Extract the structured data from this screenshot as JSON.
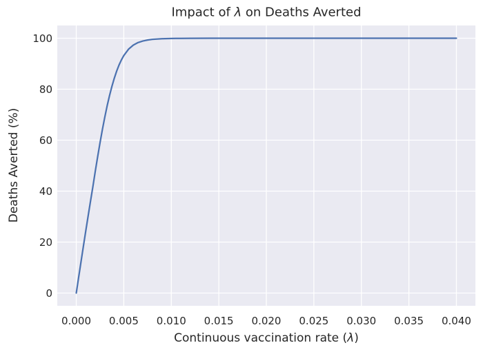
{
  "figure": {
    "title": {
      "pre": "Impact of ",
      "sym": "λ",
      "post": " on Deaths Averted"
    },
    "xlabel": {
      "pre": "Continuous vaccination rate (",
      "sym": "λ",
      "post": ")"
    },
    "ylabel": "Deaths Averted (%)",
    "colors": {
      "figure_bg": "#FFFFFF",
      "axes_bg": "#EAEAF2",
      "grid": "#FFFFFF",
      "line": "#4C72B0",
      "text": "#262626"
    }
  },
  "chart_data": {
    "type": "line",
    "title": "Impact of λ on Deaths Averted",
    "xlabel": "Continuous vaccination rate (λ)",
    "ylabel": "Deaths Averted (%)",
    "xlim": [
      -0.002,
      0.042
    ],
    "ylim": [
      -5,
      105
    ],
    "xticks": [
      0.0,
      0.005,
      0.01,
      0.015,
      0.02,
      0.025,
      0.03,
      0.035,
      0.04
    ],
    "xtick_labels": [
      "0.000",
      "0.005",
      "0.010",
      "0.015",
      "0.020",
      "0.025",
      "0.030",
      "0.035",
      "0.040"
    ],
    "yticks": [
      0,
      20,
      40,
      60,
      80,
      100
    ],
    "ytick_labels": [
      "0",
      "20",
      "40",
      "60",
      "80",
      "100"
    ],
    "grid": true,
    "legend": false,
    "series": [
      {
        "name": "deaths-averted-curve",
        "color": "#4C72B0",
        "x": [
          0.0,
          0.00025,
          0.0005,
          0.00075,
          0.001,
          0.00125,
          0.0015,
          0.00175,
          0.002,
          0.00225,
          0.0025,
          0.00275,
          0.003,
          0.00325,
          0.0035,
          0.00375,
          0.004,
          0.00425,
          0.0045,
          0.00475,
          0.005,
          0.0055,
          0.006,
          0.0065,
          0.007,
          0.0075,
          0.008,
          0.009,
          0.01,
          0.011,
          0.012,
          0.014,
          0.016,
          0.02,
          0.024,
          0.028,
          0.032,
          0.036,
          0.04
        ],
        "y": [
          0.0,
          6.2,
          12.3,
          18.4,
          24.4,
          30.3,
          36.1,
          41.8,
          47.8,
          53.5,
          59.0,
          64.2,
          69.0,
          73.5,
          77.5,
          81.1,
          84.3,
          87.1,
          89.5,
          91.5,
          93.2,
          95.7,
          97.3,
          98.3,
          98.9,
          99.3,
          99.55,
          99.8,
          99.9,
          99.94,
          99.97,
          99.99,
          100.0,
          100.0,
          100.0,
          100.0,
          100.0,
          100.0,
          100.0
        ]
      }
    ]
  }
}
